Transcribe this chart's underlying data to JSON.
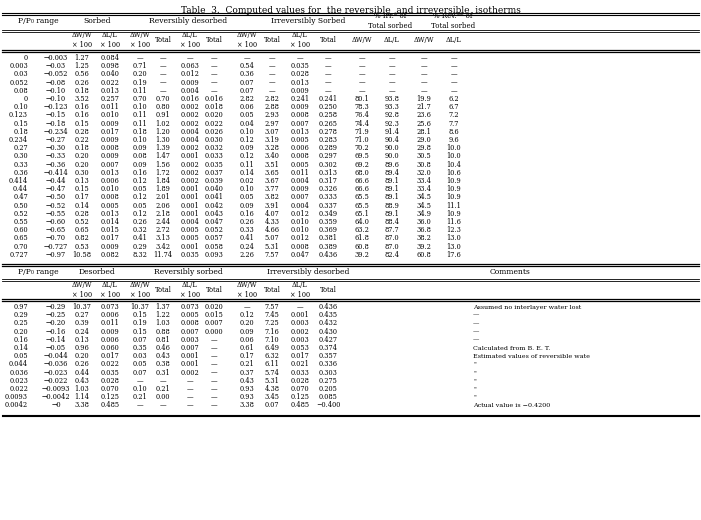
{
  "title": "Table  3.  Computed values for  the reversible  and irreversible  isotherms",
  "rows_top": [
    [
      "0",
      "→0.003",
      "1.27",
      "0.084",
      "—",
      "—",
      "—",
      "—",
      "—",
      "—",
      "—",
      "—",
      "—",
      "—",
      "—",
      "—"
    ],
    [
      "0.003",
      "→0.03",
      "1.25",
      "0.098",
      "0.71",
      "—",
      "0.063",
      "—",
      "0.54",
      "—",
      "0.035",
      "—",
      "—",
      "—",
      "—",
      "—"
    ],
    [
      "0.03",
      "→0.052",
      "0.56",
      "0.040",
      "0.20",
      "—",
      "0.012",
      "—",
      "0.36",
      "—",
      "0.028",
      "—",
      "—",
      "—",
      "—",
      "—"
    ],
    [
      "0.052",
      "→0.08",
      "0.26",
      "0.022",
      "0.19",
      "—",
      "0.009",
      "—",
      "0.07",
      "—",
      "0.013",
      "—",
      "—",
      "—",
      "—",
      "—"
    ],
    [
      "0.08",
      "→0.10",
      "0.18",
      "0.013",
      "0.11",
      "—",
      "0.004",
      "—",
      "0.07",
      "—",
      "0.009",
      "—",
      "—",
      "—",
      "—",
      "—"
    ],
    [
      "0",
      "→0.10",
      "3.52",
      "0.257",
      "0.70",
      "0.70",
      "0.016",
      "0.016",
      "2.82",
      "2.82",
      "0.241",
      "0.241",
      "80.1",
      "93.8",
      "19.9",
      "6.2"
    ],
    [
      "0.10",
      "→0.123",
      "0.16",
      "0.011",
      "0.10",
      "0.80",
      "0.002",
      "0.018",
      "0.06",
      "2.88",
      "0.009",
      "0.250",
      "78.3",
      "93.3",
      "21.7",
      "6.7"
    ],
    [
      "0.123",
      "→0.15",
      "0.16",
      "0.010",
      "0.11",
      "0.91",
      "0.002",
      "0.020",
      "0.05",
      "2.93",
      "0.008",
      "0.258",
      "76.4",
      "92.8",
      "23.6",
      "7.2"
    ],
    [
      "0.15",
      "→0.18",
      "0.15",
      "0.009",
      "0.11",
      "1.02",
      "0.002",
      "0.022",
      "0.04",
      "2.97",
      "0.007",
      "0.265",
      "74.4",
      "92.3",
      "25.6",
      "7.7"
    ],
    [
      "0.18",
      "→0.234",
      "0.28",
      "0.017",
      "0.18",
      "1.20",
      "0.004",
      "0.026",
      "0.10",
      "3.07",
      "0.013",
      "0.278",
      "71.9",
      "91.4",
      "28.1",
      "8.6"
    ],
    [
      "0.234",
      "→0.27",
      "0.22",
      "0.009",
      "0.10",
      "1.30",
      "0.004",
      "0.030",
      "0.12",
      "3.19",
      "0.005",
      "0.283",
      "71.0",
      "90.4",
      "29.0",
      "9.6"
    ],
    [
      "0.27",
      "→0.30",
      "0.18",
      "0.008",
      "0.09",
      "1.39",
      "0.002",
      "0.032",
      "0.09",
      "3.28",
      "0.006",
      "0.289",
      "70.2",
      "90.0",
      "29.8",
      "10.0"
    ],
    [
      "0.30",
      "→0.33",
      "0.20",
      "0.009",
      "0.08",
      "1.47",
      "0.001",
      "0.033",
      "0.12",
      "3.40",
      "0.008",
      "0.297",
      "69.5",
      "90.0",
      "30.5",
      "10.0"
    ],
    [
      "0.33",
      "→0.36",
      "0.20",
      "0.007",
      "0.09",
      "1.56",
      "0.002",
      "0.035",
      "0.11",
      "3.51",
      "0.005",
      "0.302",
      "69.2",
      "89.6",
      "30.8",
      "10.4"
    ],
    [
      "0.36",
      "→0.414",
      "0.30",
      "0.013",
      "0.16",
      "1.72",
      "0.002",
      "0.037",
      "0.14",
      "3.65",
      "0.011",
      "0.313",
      "68.0",
      "89.4",
      "32.0",
      "10.6"
    ],
    [
      "0.414",
      "→0.44",
      "0.13",
      "0.006",
      "0.12",
      "1.84",
      "0.002",
      "0.039",
      "0.02",
      "3.67",
      "0.004",
      "0.317",
      "66.6",
      "89.1",
      "33.4",
      "10.9"
    ],
    [
      "0.44",
      "→0.47",
      "0.15",
      "0.010",
      "0.05",
      "1.89",
      "0.001",
      "0.040",
      "0.10",
      "3.77",
      "0.009",
      "0.326",
      "66.6",
      "89.1",
      "33.4",
      "10.9"
    ],
    [
      "0.47",
      "→0.50",
      "0.17",
      "0.008",
      "0.12",
      "2.01",
      "0.001",
      "0.041",
      "0.05",
      "3.82",
      "0.007",
      "0.333",
      "65.5",
      "89.1",
      "34.5",
      "10.9"
    ],
    [
      "0.50",
      "→0.52",
      "0.14",
      "0.005",
      "0.05",
      "2.06",
      "0.001",
      "0.042",
      "0.09",
      "3.91",
      "0.004",
      "0.337",
      "65.5",
      "88.9",
      "34.5",
      "11.1"
    ],
    [
      "0.52",
      "→0.55",
      "0.28",
      "0.013",
      "0.12",
      "2.18",
      "0.001",
      "0.043",
      "0.16",
      "4.07",
      "0.012",
      "0.349",
      "65.1",
      "89.1",
      "34.9",
      "10.9"
    ],
    [
      "0.55",
      "→0.60",
      "0.52",
      "0.014",
      "0.26",
      "2.44",
      "0.004",
      "0.047",
      "0.26",
      "4.33",
      "0.010",
      "0.359",
      "64.0",
      "88.4",
      "36.0",
      "11.6"
    ],
    [
      "0.60",
      "→0.65",
      "0.65",
      "0.015",
      "0.32",
      "2.72",
      "0.005",
      "0.052",
      "0.33",
      "4.66",
      "0.010",
      "0.369",
      "63.2",
      "87.7",
      "36.8",
      "12.3"
    ],
    [
      "0.65",
      "→0.70",
      "0.82",
      "0.017",
      "0.41",
      "3.13",
      "0.005",
      "0.057",
      "0.41",
      "5.07",
      "0.012",
      "0.381",
      "61.8",
      "87.0",
      "38.2",
      "13.0"
    ],
    [
      "0.70",
      "→0.727",
      "0.53",
      "0.009",
      "0.29",
      "3.42",
      "0.001",
      "0.058",
      "0.24",
      "5.31",
      "0.008",
      "0.389",
      "60.8",
      "87.0",
      "39.2",
      "13.0"
    ],
    [
      "0.727",
      "→0.97",
      "10.58",
      "0.082",
      "8.32",
      "11.74",
      "0.035",
      "0.093",
      "2.26",
      "7.57",
      "0.047",
      "0.436",
      "39.2",
      "82.4",
      "60.8",
      "17.6"
    ]
  ],
  "rows_bottom": [
    [
      "0.97",
      "→0.29",
      "10.37",
      "0.073",
      "10.37",
      "1.37",
      "0.073",
      "0.020",
      "—",
      "7.57",
      "—",
      "0.436",
      "Assumed no interlayer water lost"
    ],
    [
      "0.29",
      "→0.25",
      "0.27",
      "0.006",
      "0.15",
      "1.22",
      "0.005",
      "0.015",
      "0.12",
      "7.45",
      "0.001",
      "0.435",
      "—"
    ],
    [
      "0.25",
      "→0.20",
      "0.39",
      "0.011",
      "0.19",
      "1.03",
      "0.008",
      "0.007",
      "0.20",
      "7.25",
      "0.003",
      "0.432",
      "—"
    ],
    [
      "0.20",
      "→0.16",
      "0.24",
      "0.009",
      "0.15",
      "0.88",
      "0.007",
      "0.000",
      "0.09",
      "7.16",
      "0.002",
      "0.430",
      "—"
    ],
    [
      "0.16",
      "→0.14",
      "0.13",
      "0.006",
      "0.07",
      "0.81",
      "0.003",
      "—",
      "0.06",
      "7.10",
      "0.003",
      "0.427",
      "—"
    ],
    [
      "0.14",
      "→0.05",
      "0.96",
      "0.060",
      "0.35",
      "0.46",
      "0.007",
      "—",
      "0.61",
      "6.49",
      "0.053",
      "0.374",
      "Calculated from B. E. T."
    ],
    [
      "0.05",
      "→0.044",
      "0.20",
      "0.017",
      "0.03",
      "0.43",
      "0.001",
      "—",
      "0.17",
      "6.32",
      "0.017",
      "0.357",
      "Estimated values of reversible wate"
    ],
    [
      "0.044",
      "→0.036",
      "0.26",
      "0.022",
      "0.05",
      "0.38",
      "0.001",
      "—",
      "0.21",
      "6.11",
      "0.021",
      "0.336",
      "\""
    ],
    [
      "0.036",
      "→0.023",
      "0.44",
      "0.035",
      "0.07",
      "0.31",
      "0.002",
      "—",
      "0.37",
      "5.74",
      "0.033",
      "0.303",
      "\""
    ],
    [
      "0.023",
      "→0.022",
      "0.43",
      "0.028",
      "—",
      "—",
      "—",
      "—",
      "0.43",
      "5.31",
      "0.028",
      "0.275",
      "\""
    ],
    [
      "0.022",
      "→0.0093",
      "1.03",
      "0.070",
      "0.10",
      "0.21",
      "—",
      "—",
      "0.93",
      "4.38",
      "0.070",
      "0.205",
      "\""
    ],
    [
      "0.0093",
      "→0.0042",
      "1.14",
      "0.125",
      "0.21",
      "0.00",
      "—",
      "—",
      "0.93",
      "3.45",
      "0.125",
      "0.085",
      "\""
    ],
    [
      "0.0042",
      "→0",
      "3.38",
      "0.485",
      "—",
      "—",
      "—",
      "—",
      "3.38",
      "0.07",
      "0.485",
      "−0.400",
      "Actual value is −0.4200"
    ]
  ]
}
